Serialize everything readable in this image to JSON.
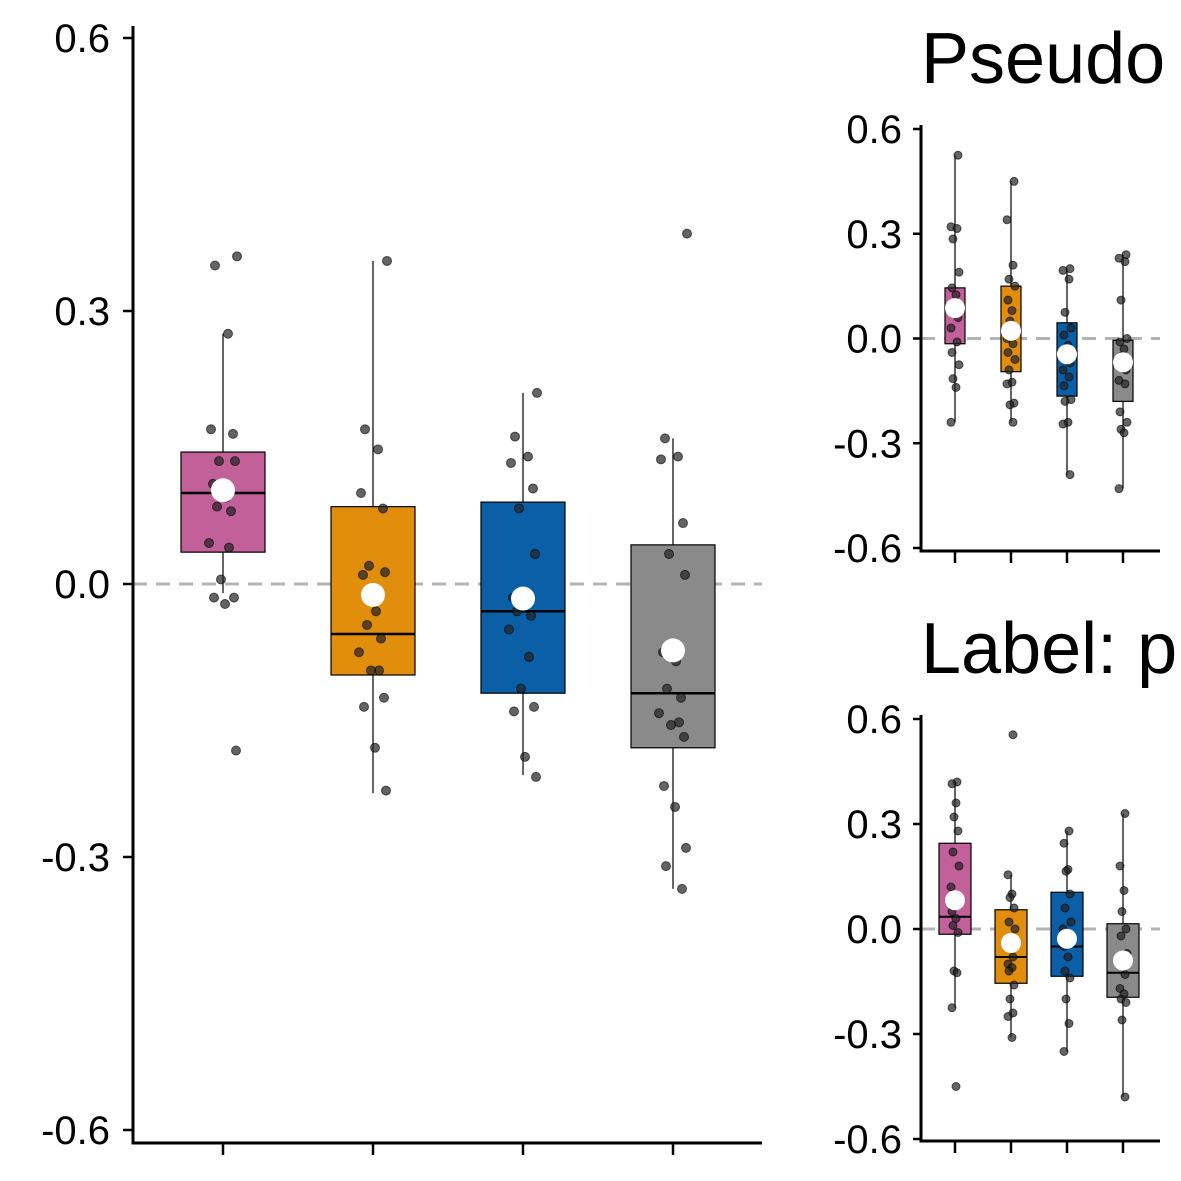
{
  "colors": {
    "group_1": "#C2609A",
    "group_2": "#E08E0B",
    "group_3": "#0A5FA6",
    "group_4": "#8A8A8A",
    "zero_line": "#b3b3b3",
    "point": "#222222",
    "mean_marker": "#ffffff"
  },
  "chart_data": [
    {
      "type": "box",
      "title": "",
      "xlabel": "",
      "ylabel": "",
      "ylim": [
        -0.62,
        0.62
      ],
      "yticks": [
        0.6,
        0.3,
        0.0,
        -0.3,
        -0.6
      ],
      "ytick_labels": [
        "0.6",
        "0.3",
        "0.0",
        "-0.3",
        "-0.6"
      ],
      "reference_line": 0.0,
      "series": [
        {
          "q1": 0.035,
          "median": 0.1,
          "q3": 0.145,
          "whisker_low": -0.01,
          "whisker_high": 0.275,
          "mean": 0.103,
          "points": [
            0.36,
            0.35,
            0.275,
            0.17,
            0.165,
            0.135,
            0.135,
            0.11,
            0.095,
            0.085,
            0.08,
            0.045,
            0.04,
            0.005,
            -0.015,
            -0.015,
            -0.022,
            -0.183
          ]
        },
        {
          "q1": -0.1,
          "median": -0.055,
          "q3": 0.085,
          "whisker_low": -0.23,
          "whisker_high": 0.355,
          "mean": -0.012,
          "points": [
            0.355,
            0.17,
            0.148,
            0.1,
            0.083,
            0.02,
            0.013,
            0.01,
            -0.03,
            -0.045,
            -0.06,
            -0.075,
            -0.095,
            -0.095,
            -0.125,
            -0.135,
            -0.18,
            -0.227
          ]
        },
        {
          "q1": -0.12,
          "median": -0.03,
          "q3": 0.09,
          "whisker_low": -0.21,
          "whisker_high": 0.21,
          "mean": -0.016,
          "points": [
            0.21,
            0.162,
            0.14,
            0.133,
            0.105,
            0.083,
            0.033,
            -0.015,
            -0.02,
            -0.03,
            -0.035,
            -0.05,
            -0.08,
            -0.115,
            -0.135,
            -0.14,
            -0.19,
            -0.212
          ]
        },
        {
          "q1": -0.18,
          "median": -0.12,
          "q3": 0.043,
          "whisker_low": -0.335,
          "whisker_high": 0.16,
          "mean": -0.073,
          "points": [
            0.385,
            0.16,
            0.14,
            0.137,
            0.067,
            0.033,
            0.01,
            -0.075,
            -0.085,
            -0.115,
            -0.125,
            -0.142,
            -0.152,
            -0.155,
            -0.168,
            -0.222,
            -0.245,
            -0.29,
            -0.31,
            -0.335
          ]
        }
      ]
    },
    {
      "type": "box",
      "title": "Pseudo",
      "xlabel": "",
      "ylabel": "",
      "ylim": [
        -0.62,
        0.62
      ],
      "yticks": [
        0.6,
        0.3,
        0.0,
        -0.3,
        -0.6
      ],
      "ytick_labels": [
        "0.6",
        "0.3",
        "0.0",
        "-0.3",
        "-0.6"
      ],
      "reference_line": 0.0,
      "series": [
        {
          "q1": -0.015,
          "median": 0.085,
          "q3": 0.145,
          "whisker_low": -0.24,
          "whisker_high": 0.525,
          "mean": 0.087,
          "points": [
            0.525,
            0.32,
            0.315,
            0.285,
            0.19,
            0.145,
            0.125,
            0.09,
            0.06,
            0.03,
            -0.01,
            -0.04,
            -0.075,
            -0.115,
            -0.14,
            -0.24
          ]
        },
        {
          "q1": -0.095,
          "median": 0.02,
          "q3": 0.15,
          "whisker_low": -0.24,
          "whisker_high": 0.45,
          "mean": 0.022,
          "points": [
            0.45,
            0.34,
            0.21,
            0.17,
            0.15,
            0.11,
            0.08,
            0.05,
            0.02,
            0.0,
            -0.015,
            -0.04,
            -0.06,
            -0.09,
            -0.125,
            -0.13,
            -0.185,
            -0.19,
            -0.24
          ]
        },
        {
          "q1": -0.165,
          "median": -0.05,
          "q3": 0.045,
          "whisker_low": -0.39,
          "whisker_high": 0.2,
          "mean": -0.045,
          "points": [
            0.2,
            0.195,
            0.17,
            0.075,
            0.03,
            0.01,
            -0.02,
            -0.05,
            -0.07,
            -0.09,
            -0.11,
            -0.135,
            -0.175,
            -0.18,
            -0.24,
            -0.245,
            -0.39
          ]
        },
        {
          "q1": -0.18,
          "median": -0.06,
          "q3": -0.005,
          "whisker_low": -0.43,
          "whisker_high": 0.24,
          "mean": -0.068,
          "points": [
            0.24,
            0.23,
            0.22,
            0.11,
            0.0,
            -0.01,
            -0.03,
            -0.05,
            -0.09,
            -0.12,
            -0.13,
            -0.21,
            -0.24,
            -0.26,
            -0.27,
            -0.43
          ]
        }
      ]
    },
    {
      "type": "box",
      "title": "Label: p",
      "xlabel": "",
      "ylabel": "",
      "ylim": [
        -0.62,
        0.62
      ],
      "yticks": [
        0.6,
        0.3,
        0.0,
        -0.3,
        -0.6
      ],
      "ytick_labels": [
        "0.6",
        "0.3",
        "0.0",
        "-0.3",
        "-0.6"
      ],
      "reference_line": 0.0,
      "series": [
        {
          "q1": -0.015,
          "median": 0.035,
          "q3": 0.245,
          "whisker_low": -0.225,
          "whisker_high": 0.42,
          "mean": 0.082,
          "points": [
            0.42,
            0.415,
            0.36,
            0.32,
            0.28,
            0.22,
            0.18,
            0.12,
            0.08,
            0.05,
            0.03,
            0.01,
            -0.01,
            -0.12,
            -0.125,
            -0.225,
            -0.45
          ]
        },
        {
          "q1": -0.155,
          "median": -0.08,
          "q3": 0.055,
          "whisker_low": -0.31,
          "whisker_high": 0.155,
          "mean": -0.04,
          "points": [
            0.555,
            0.155,
            0.1,
            0.09,
            0.06,
            0.02,
            0.0,
            -0.05,
            -0.08,
            -0.1,
            -0.11,
            -0.12,
            -0.16,
            -0.2,
            -0.24,
            -0.25,
            -0.31
          ]
        },
        {
          "q1": -0.135,
          "median": -0.05,
          "q3": 0.105,
          "whisker_low": -0.35,
          "whisker_high": 0.28,
          "mean": -0.028,
          "points": [
            0.28,
            0.245,
            0.17,
            0.165,
            0.1,
            0.06,
            0.02,
            0.0,
            -0.03,
            -0.05,
            -0.08,
            -0.12,
            -0.14,
            -0.2,
            -0.27,
            -0.35
          ]
        },
        {
          "q1": -0.195,
          "median": -0.125,
          "q3": 0.015,
          "whisker_low": -0.48,
          "whisker_high": 0.33,
          "mean": -0.09,
          "points": [
            0.33,
            0.18,
            0.11,
            0.05,
            0.0,
            -0.02,
            -0.07,
            -0.095,
            -0.13,
            -0.17,
            -0.185,
            -0.2,
            -0.21,
            -0.26,
            -0.48
          ]
        }
      ]
    }
  ]
}
